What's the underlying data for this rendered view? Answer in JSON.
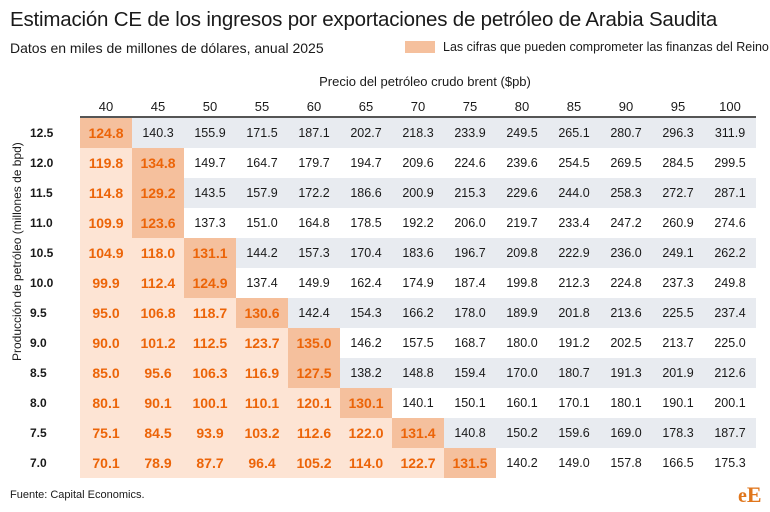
{
  "title": "Estimación CE de los ingresos por exportaciones de petróleo de Arabia Saudita",
  "subtitle": "Datos en miles de millones de dólares, anual 2025",
  "legend_label": "Las cifras que pueden comprometer las finanzas del Reino",
  "source": "Fuente: Capital Economics.",
  "logo_text": "eE",
  "colors": {
    "highlight_text": "#ec6408",
    "stripe": "#e8ebf0",
    "highlight_bg_light": "#fde4d4",
    "highlight_bg_dark": "#f5c09d"
  },
  "chart_data": {
    "type": "table",
    "xlabel": "Precio del petróleo crudo brent ($pb)",
    "ylabel": "Producción de petróleo (millones de bpd)",
    "columns": [
      "40",
      "45",
      "50",
      "55",
      "60",
      "65",
      "70",
      "75",
      "80",
      "85",
      "90",
      "95",
      "100"
    ],
    "rows": [
      "12.5",
      "12.0",
      "11.5",
      "11.0",
      "10.5",
      "10.0",
      "9.5",
      "9.0",
      "8.5",
      "8.0",
      "7.5",
      "7.0"
    ],
    "values": [
      [
        "124.8",
        "140.3",
        "155.9",
        "171.5",
        "187.1",
        "202.7",
        "218.3",
        "233.9",
        "249.5",
        "265.1",
        "280.7",
        "296.3",
        "311.9"
      ],
      [
        "119.8",
        "134.8",
        "149.7",
        "164.7",
        "179.7",
        "194.7",
        "209.6",
        "224.6",
        "239.6",
        "254.5",
        "269.5",
        "284.5",
        "299.5"
      ],
      [
        "114.8",
        "129.2",
        "143.5",
        "157.9",
        "172.2",
        "186.6",
        "200.9",
        "215.3",
        "229.6",
        "244.0",
        "258.3",
        "272.7",
        "287.1"
      ],
      [
        "109.9",
        "123.6",
        "137.3",
        "151.0",
        "164.8",
        "178.5",
        "192.2",
        "206.0",
        "219.7",
        "233.4",
        "247.2",
        "260.9",
        "274.6"
      ],
      [
        "104.9",
        "118.0",
        "131.1",
        "144.2",
        "157.3",
        "170.4",
        "183.6",
        "196.7",
        "209.8",
        "222.9",
        "236.0",
        "249.1",
        "262.2"
      ],
      [
        "99.9",
        "112.4",
        "124.9",
        "137.4",
        "149.9",
        "162.4",
        "174.9",
        "187.4",
        "199.8",
        "212.3",
        "224.8",
        "237.3",
        "249.8"
      ],
      [
        "95.0",
        "106.8",
        "118.7",
        "130.6",
        "142.4",
        "154.3",
        "166.2",
        "178.0",
        "189.9",
        "201.8",
        "213.6",
        "225.5",
        "237.4"
      ],
      [
        "90.0",
        "101.2",
        "112.5",
        "123.7",
        "135.0",
        "146.2",
        "157.5",
        "168.7",
        "180.0",
        "191.2",
        "202.5",
        "213.7",
        "225.0"
      ],
      [
        "85.0",
        "95.6",
        "106.3",
        "116.9",
        "127.5",
        "138.2",
        "148.8",
        "159.4",
        "170.0",
        "180.7",
        "191.3",
        "201.9",
        "212.6"
      ],
      [
        "80.1",
        "90.1",
        "100.1",
        "110.1",
        "120.1",
        "130.1",
        "140.1",
        "150.1",
        "160.1",
        "170.1",
        "180.1",
        "190.1",
        "200.1"
      ],
      [
        "75.1",
        "84.5",
        "93.9",
        "103.2",
        "112.6",
        "122.0",
        "131.4",
        "140.8",
        "150.2",
        "159.6",
        "169.0",
        "178.3",
        "187.7"
      ],
      [
        "70.1",
        "78.9",
        "87.7",
        "96.4",
        "105.2",
        "114.0",
        "122.7",
        "131.5",
        "140.2",
        "149.0",
        "157.8",
        "166.5",
        "175.3"
      ]
    ],
    "highlight_counts": [
      1,
      2,
      2,
      2,
      3,
      3,
      4,
      5,
      5,
      6,
      7,
      8
    ]
  }
}
